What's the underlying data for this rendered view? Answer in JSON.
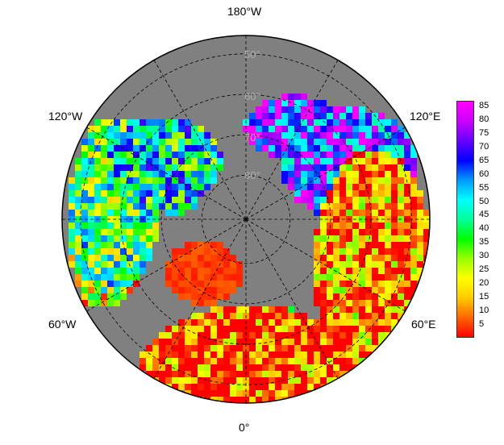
{
  "map": {
    "projection": "north-polar-stereographic",
    "ocean_color": "#808080",
    "lon_labels": {
      "top": "180°W",
      "bottom": "0°",
      "upper_left": "120°W",
      "upper_right": "120°E",
      "lower_left": "60°W",
      "lower_right": "60°E"
    },
    "lat_labels": [
      "50°",
      "60°",
      "70°",
      "80°"
    ]
  },
  "legend": {
    "ticks": [
      "85",
      "80",
      "75",
      "70",
      "65",
      "60",
      "55",
      "50",
      "45",
      "40",
      "35",
      "30",
      "25",
      "20",
      "15",
      "10",
      "5"
    ],
    "range": [
      0,
      87
    ],
    "colors": [
      "#ff0000",
      "#ff6600",
      "#ffcc00",
      "#ffff00",
      "#99ff00",
      "#00ff00",
      "#00ff99",
      "#00ffff",
      "#0099ff",
      "#0000ff",
      "#6600ff",
      "#cc00ff",
      "#ff00ff"
    ]
  }
}
